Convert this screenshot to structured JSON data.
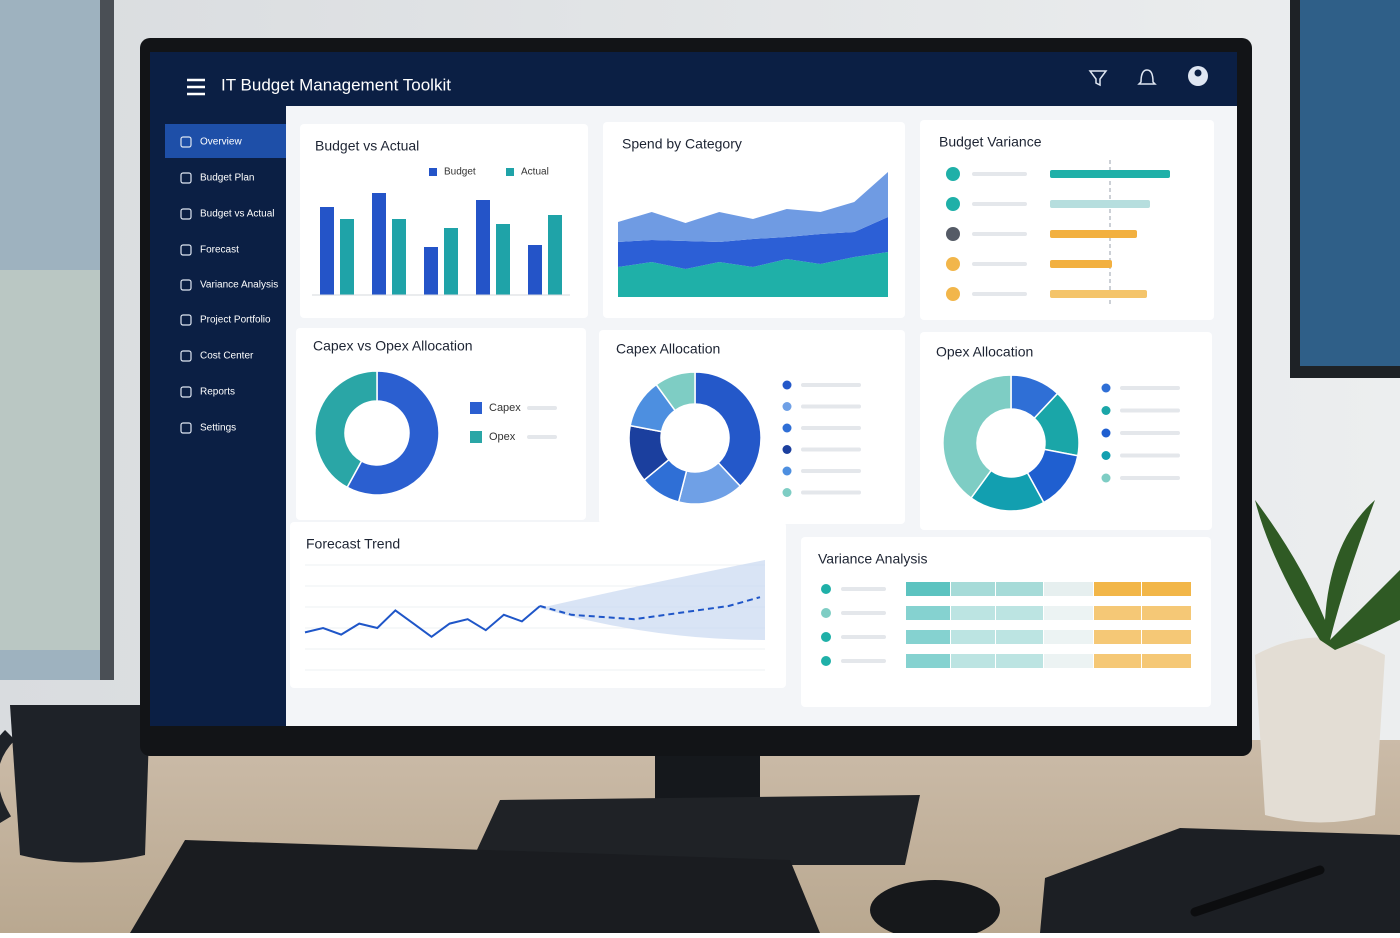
{
  "header": {
    "title": "IT Budget Management Toolkit"
  },
  "nav": [
    "Overview",
    "Budget Plan",
    "Budget vs Actual",
    "Forecast",
    "Variance Analysis",
    "Project Portfolio",
    "Cost Center",
    "Reports",
    "Settings"
  ],
  "cards": {
    "budget_vs_actual": {
      "title": "Budget vs Actual",
      "series": [
        {
          "name": "Budget",
          "color": "#2454c8",
          "values": [
            88,
            102,
            48,
            95,
            50
          ]
        },
        {
          "name": "Actual",
          "color": "#1fa3a8",
          "values": [
            76,
            76,
            67,
            71,
            80
          ]
        }
      ]
    },
    "spend_by_category": {
      "title": "Spend by Category",
      "series": [
        {
          "color": "#1fb0a8",
          "values": [
            30,
            35,
            28,
            35,
            30,
            38,
            33,
            40,
            45
          ]
        },
        {
          "color": "#2c5fd6",
          "values": [
            25,
            22,
            28,
            20,
            28,
            22,
            30,
            25,
            35
          ]
        },
        {
          "color": "#6f9be3",
          "values": [
            20,
            28,
            18,
            30,
            20,
            28,
            22,
            30,
            45
          ]
        }
      ]
    },
    "budget_variance": {
      "title": "Budget Variance",
      "dot_colors": [
        "#1fb0a8",
        "#1fb0a8",
        "#555b66",
        "#f2b64a",
        "#f2b64a"
      ],
      "bar_colors": [
        "#1fb0a8",
        "#b6dede",
        "#f2b040",
        "#f2b040",
        "#f4c46a"
      ],
      "values": [
        120,
        100,
        87,
        62,
        97
      ]
    },
    "capex_vs_opex": {
      "title": "Capex vs Opex Allocation",
      "series": [
        {
          "name": "Capex",
          "color": "#2b5fd0",
          "value": 58
        },
        {
          "name": "Opex",
          "color": "#2aa6a6",
          "value": 42
        }
      ]
    },
    "capex_allocation": {
      "title": "Capex Allocation",
      "values": [
        38,
        16,
        10,
        14,
        12,
        10
      ],
      "colors": [
        "#2458c9",
        "#6fa0e6",
        "#2f6fd6",
        "#1b3f9e",
        "#4d8fe0",
        "#7ecdc4"
      ]
    },
    "opex_allocation": {
      "title": "Opex Allocation",
      "values": [
        12,
        16,
        14,
        18,
        40
      ],
      "colors": [
        "#2f6fd6",
        "#1aa6a8",
        "#1f5fd0",
        "#129fb0",
        "#7ecdc4"
      ]
    },
    "forecast_trend": {
      "title": "Forecast Trend",
      "actual": [
        8,
        10,
        7,
        12,
        10,
        18,
        12,
        6,
        12,
        14,
        9,
        16,
        13,
        20
      ],
      "forecast": [
        20,
        16,
        15,
        14,
        16,
        18,
        20,
        24
      ]
    },
    "variance_analysis": {
      "title": "Variance Analysis",
      "dot_colors": [
        "#1fb0a8",
        "#7ecdc4",
        "#1fb0a8",
        "#1fb0a8"
      ],
      "column_colors": [
        "#5cc3c0",
        "#a6dbd8",
        "#a6dbd8",
        "#e6efef",
        "#f2b648",
        "#f2b648"
      ],
      "rows": [
        [
          45,
          45,
          48,
          50,
          48,
          50
        ],
        [
          45,
          45,
          48,
          50,
          48,
          50
        ],
        [
          45,
          45,
          48,
          50,
          48,
          50
        ],
        [
          45,
          45,
          48,
          50,
          48,
          50
        ]
      ]
    }
  }
}
